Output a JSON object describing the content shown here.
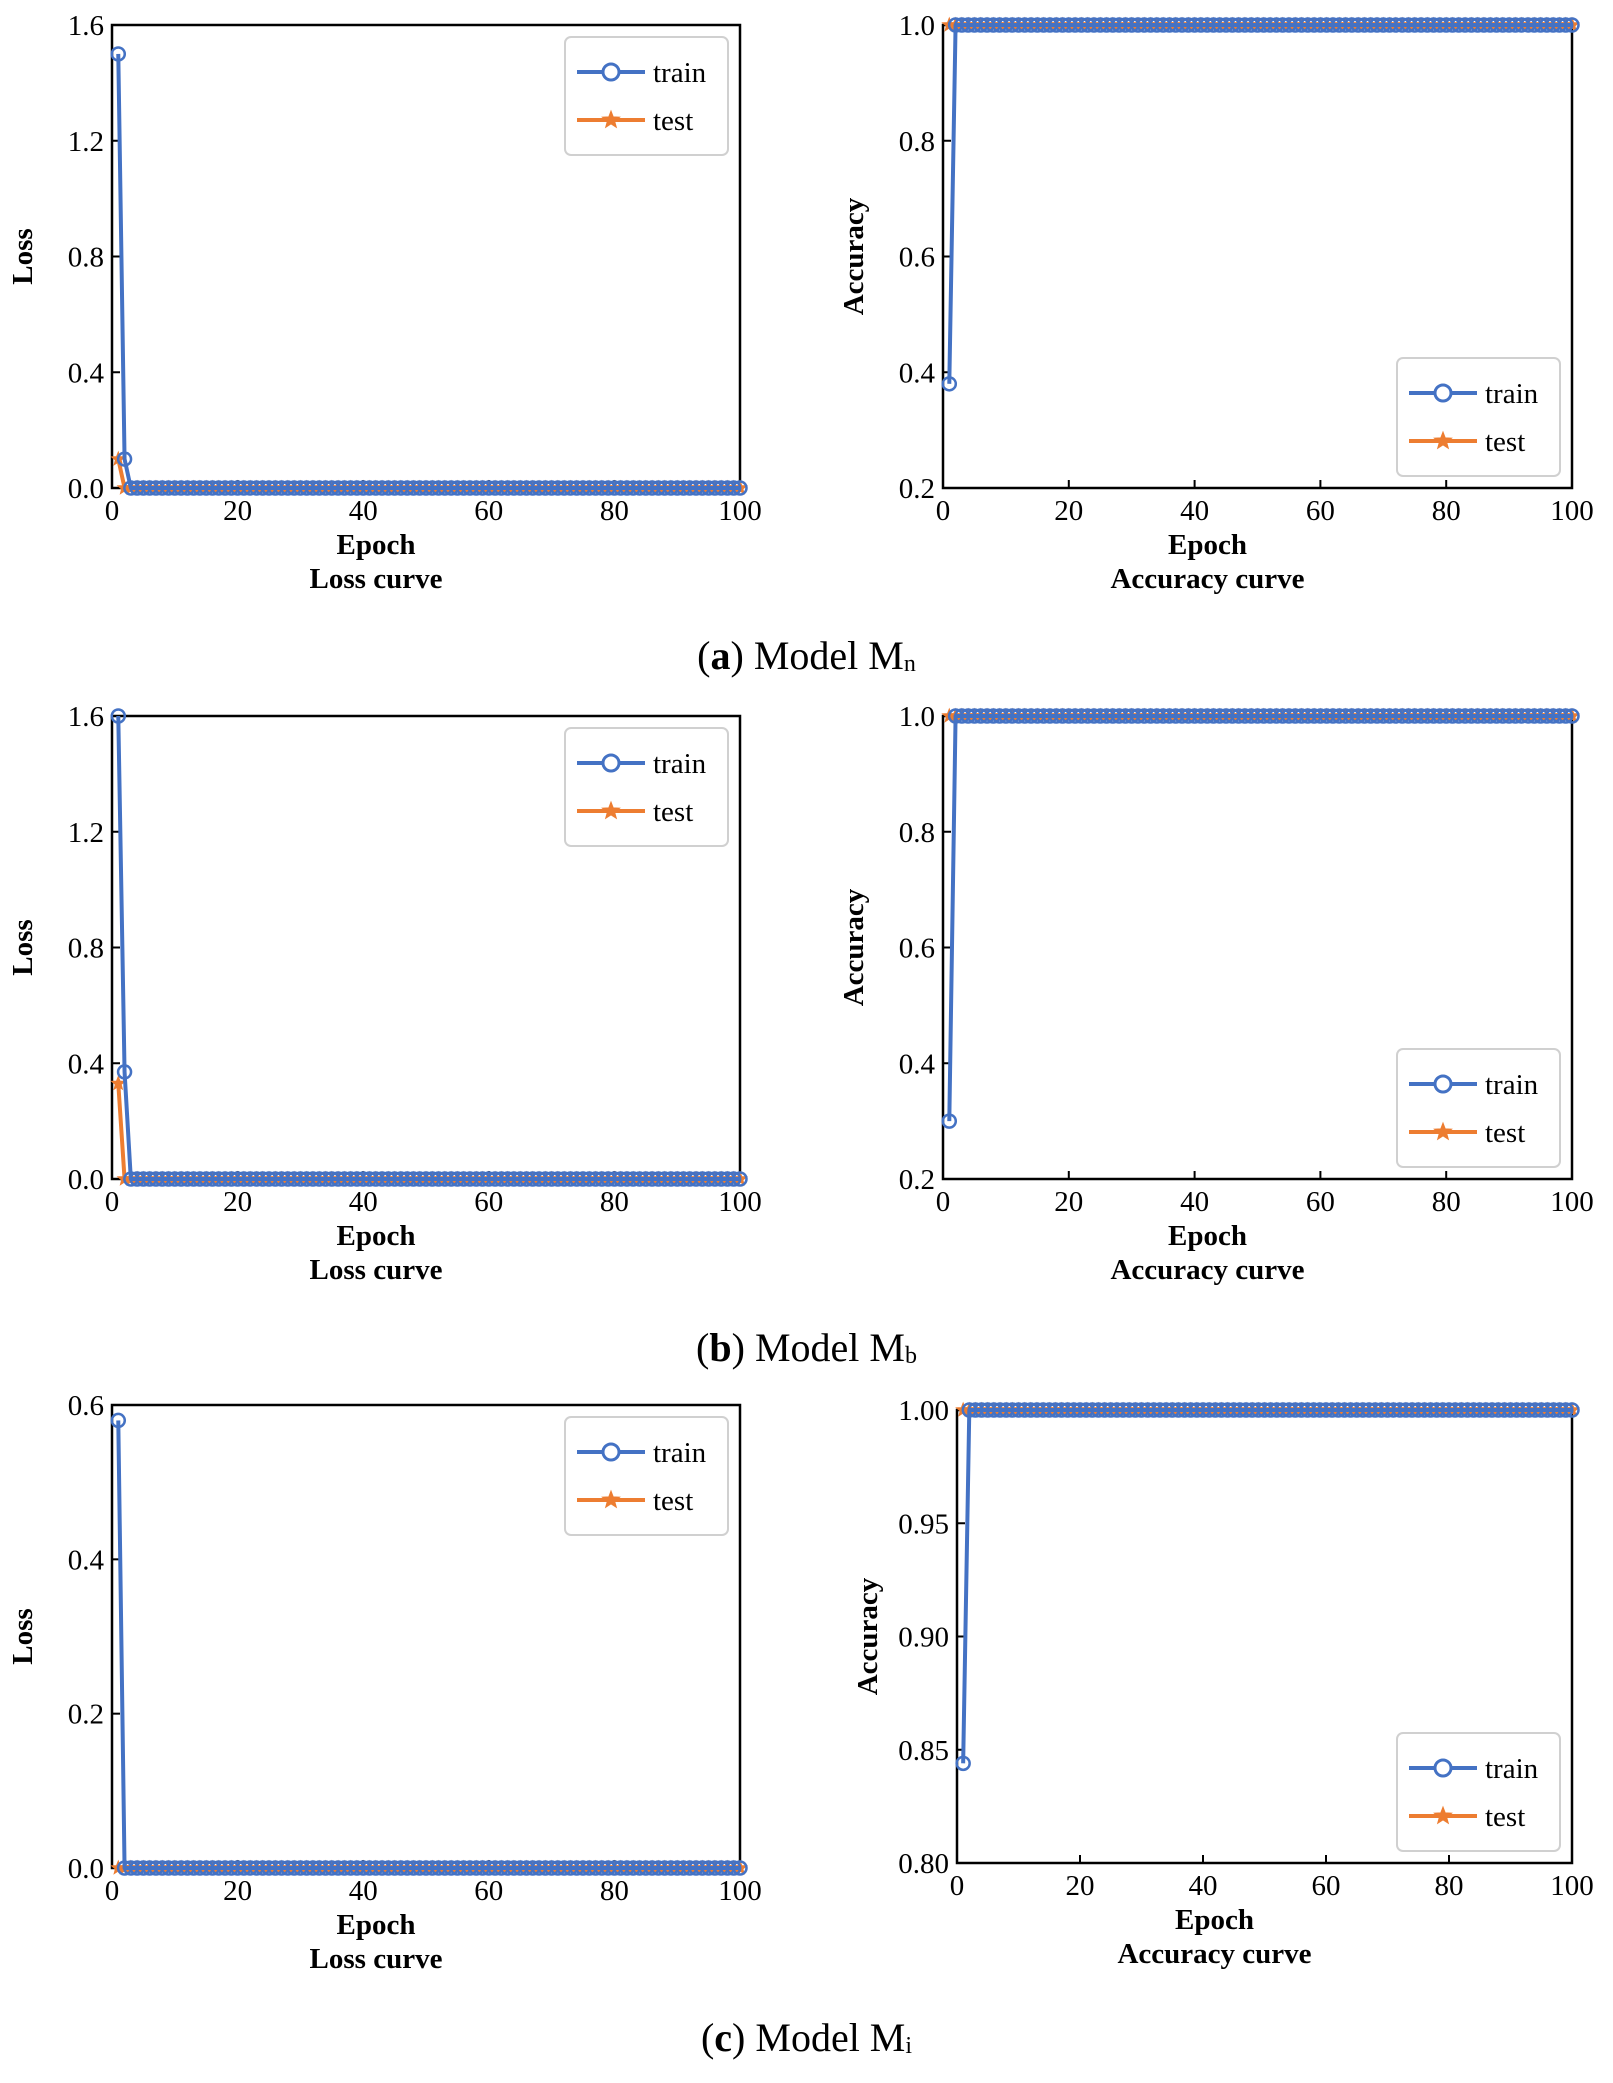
{
  "figure": {
    "rows": [
      {
        "caption": {
          "letter": "a",
          "prefix": "(",
          "suffix": ")",
          "text": " Model M",
          "subscript": "n"
        },
        "charts": [
          0,
          1
        ]
      },
      {
        "caption": {
          "letter": "b",
          "prefix": "(",
          "suffix": ")",
          "text": " Model M",
          "subscript": "b"
        },
        "charts": [
          2,
          3
        ]
      },
      {
        "caption": {
          "letter": "c",
          "prefix": "(",
          "suffix": ")",
          "text": " Model M",
          "subscript": "i"
        },
        "charts": [
          4,
          5
        ]
      }
    ]
  },
  "colors": {
    "train": "#4472C4",
    "test": "#ED7D31",
    "axis": "#000000"
  },
  "chart_data": [
    {
      "type": "line",
      "title": "Loss curve",
      "xlabel": "Epoch",
      "ylabel": "Loss",
      "xlim": [
        0,
        100
      ],
      "ylim": [
        0,
        1.6
      ],
      "xticks": [
        0,
        20,
        40,
        60,
        80,
        100
      ],
      "yticks": [
        0.0,
        0.4,
        0.8,
        1.2,
        1.6
      ],
      "ytick_labels": [
        "0.0",
        "0.4",
        "0.8",
        "1.2",
        "1.6"
      ],
      "legend": "top-right",
      "series": [
        {
          "name": "train",
          "marker": "circle",
          "start": [
            [
              1,
              1.5
            ],
            [
              2,
              0.1
            ]
          ],
          "plateau": 0.0,
          "plateau_from": 3,
          "to": 100
        },
        {
          "name": "test",
          "marker": "star",
          "start": [
            [
              1,
              0.1
            ]
          ],
          "plateau": 0.0,
          "plateau_from": 2,
          "to": 100
        }
      ]
    },
    {
      "type": "line",
      "title": "Accuracy curve",
      "xlabel": "Epoch",
      "ylabel": "Accuracy",
      "xlim": [
        0,
        100
      ],
      "ylim": [
        0.2,
        1.0
      ],
      "xticks": [
        0,
        20,
        40,
        60,
        80,
        100
      ],
      "yticks": [
        0.2,
        0.4,
        0.6,
        0.8,
        1.0
      ],
      "ytick_labels": [
        "0.2",
        "0.4",
        "0.6",
        "0.8",
        "1.0"
      ],
      "legend": "bottom-right",
      "series": [
        {
          "name": "train",
          "marker": "circle",
          "start": [
            [
              1,
              0.38
            ]
          ],
          "plateau": 1.0,
          "plateau_from": 2,
          "to": 100
        },
        {
          "name": "test",
          "marker": "star",
          "start": [],
          "plateau": 1.0,
          "plateau_from": 1,
          "to": 100
        }
      ]
    },
    {
      "type": "line",
      "title": "Loss curve",
      "xlabel": "Epoch",
      "ylabel": "Loss",
      "xlim": [
        0,
        100
      ],
      "ylim": [
        0,
        1.6
      ],
      "xticks": [
        0,
        20,
        40,
        60,
        80,
        100
      ],
      "yticks": [
        0.0,
        0.4,
        0.8,
        1.2,
        1.6
      ],
      "ytick_labels": [
        "0.0",
        "0.4",
        "0.8",
        "1.2",
        "1.6"
      ],
      "legend": "top-right",
      "series": [
        {
          "name": "train",
          "marker": "circle",
          "start": [
            [
              1,
              1.6
            ],
            [
              2,
              0.37
            ]
          ],
          "plateau": 0.0,
          "plateau_from": 3,
          "to": 100
        },
        {
          "name": "test",
          "marker": "star",
          "start": [
            [
              1,
              0.33
            ]
          ],
          "plateau": 0.0,
          "plateau_from": 2,
          "to": 100
        }
      ]
    },
    {
      "type": "line",
      "title": "Accuracy curve",
      "xlabel": "Epoch",
      "ylabel": "Accuracy",
      "xlim": [
        0,
        100
      ],
      "ylim": [
        0.2,
        1.0
      ],
      "xticks": [
        0,
        20,
        40,
        60,
        80,
        100
      ],
      "yticks": [
        0.2,
        0.4,
        0.6,
        0.8,
        1.0
      ],
      "ytick_labels": [
        "0.2",
        "0.4",
        "0.6",
        "0.8",
        "1.0"
      ],
      "legend": "bottom-right",
      "series": [
        {
          "name": "train",
          "marker": "circle",
          "start": [
            [
              1,
              0.3
            ]
          ],
          "plateau": 1.0,
          "plateau_from": 2,
          "to": 100
        },
        {
          "name": "test",
          "marker": "star",
          "start": [],
          "plateau": 1.0,
          "plateau_from": 1,
          "to": 100
        }
      ]
    },
    {
      "type": "line",
      "title": "Loss curve",
      "xlabel": "Epoch",
      "ylabel": "Loss",
      "xlim": [
        0,
        100
      ],
      "ylim": [
        0,
        0.6
      ],
      "xticks": [
        0,
        20,
        40,
        60,
        80,
        100
      ],
      "yticks": [
        0.0,
        0.2,
        0.4,
        0.6
      ],
      "ytick_labels": [
        "0.0",
        "0.2",
        "0.4",
        "0.6"
      ],
      "legend": "top-right",
      "series": [
        {
          "name": "train",
          "marker": "circle",
          "start": [
            [
              1,
              0.58
            ]
          ],
          "plateau": 0.0,
          "plateau_from": 2,
          "to": 100
        },
        {
          "name": "test",
          "marker": "star",
          "start": [],
          "plateau": 0.0,
          "plateau_from": 1,
          "to": 100
        }
      ]
    },
    {
      "type": "line",
      "title": "Accuracy curve",
      "xlabel": "Epoch",
      "ylabel": "Accuracy",
      "xlim": [
        0,
        100
      ],
      "ylim": [
        0.8,
        1.0
      ],
      "xticks": [
        0,
        20,
        40,
        60,
        80,
        100
      ],
      "yticks": [
        0.8,
        0.85,
        0.9,
        0.95,
        1.0
      ],
      "ytick_labels": [
        "0.80",
        "0.85",
        "0.90",
        "0.95",
        "1.00"
      ],
      "legend": "bottom-right",
      "series": [
        {
          "name": "train",
          "marker": "circle",
          "start": [
            [
              1,
              0.844
            ]
          ],
          "plateau": 1.0,
          "plateau_from": 2,
          "to": 100
        },
        {
          "name": "test",
          "marker": "star",
          "start": [],
          "plateau": 1.0,
          "plateau_from": 1,
          "to": 100
        }
      ]
    }
  ]
}
